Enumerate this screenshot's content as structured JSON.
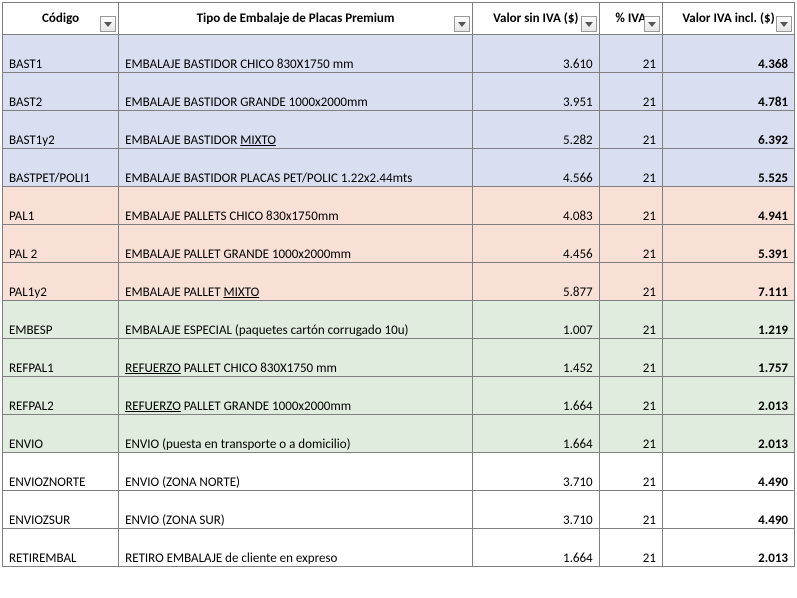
{
  "columns": {
    "codigo": "Código",
    "tipo": "Tipo de Embalaje de Placas Premium",
    "sin": "Valor sin IVA ($)",
    "iva": "% IVA",
    "incl": "Valor IVA incl. ($)"
  },
  "rows": [
    {
      "group": "blue",
      "codigo": "BAST1",
      "tipo_pre": "EMBALAJE BASTIDOR CHICO 830X1750 mm",
      "tipo_u": "",
      "tipo_post": "",
      "sin": "3.610",
      "iva": "21",
      "incl": "4.368"
    },
    {
      "group": "blue",
      "codigo": "BAST2",
      "tipo_pre": "EMBALAJE BASTIDOR GRANDE 1000x2000mm",
      "tipo_u": "",
      "tipo_post": "",
      "sin": "3.951",
      "iva": "21",
      "incl": "4.781"
    },
    {
      "group": "blue",
      "codigo": "BAST1y2",
      "tipo_pre": "EMBALAJE BASTIDOR ",
      "tipo_u": "MIXTO",
      "tipo_post": "",
      "sin": "5.282",
      "iva": "21",
      "incl": "6.392"
    },
    {
      "group": "blue",
      "codigo": "BASTPET/POLI1",
      "tipo_pre": "EMBALAJE BASTIDOR PLACAS PET/POLIC 1.22x2.44mts",
      "tipo_u": "",
      "tipo_post": "",
      "sin": "4.566",
      "iva": "21",
      "incl": "5.525"
    },
    {
      "group": "peach",
      "codigo": "PAL1",
      "tipo_pre": "EMBALAJE PALLETS CHICO 830x1750mm",
      "tipo_u": "",
      "tipo_post": "",
      "sin": "4.083",
      "iva": "21",
      "incl": "4.941"
    },
    {
      "group": "peach",
      "codigo": "PAL 2",
      "tipo_pre": "EMBALAJE PALLET GRANDE 1000x2000mm",
      "tipo_u": "",
      "tipo_post": "",
      "sin": "4.456",
      "iva": "21",
      "incl": "5.391"
    },
    {
      "group": "peach",
      "codigo": "PAL1y2",
      "tipo_pre": "EMBALAJE PALLET ",
      "tipo_u": "MIXTO",
      "tipo_post": "",
      "sin": "5.877",
      "iva": "21",
      "incl": "7.111"
    },
    {
      "group": "green",
      "codigo": "EMBESP",
      "tipo_pre": "EMBALAJE ESPECIAL (paquetes cartón corrugado 10u)",
      "tipo_u": "",
      "tipo_post": "",
      "sin": "1.007",
      "iva": "21",
      "incl": "1.219"
    },
    {
      "group": "green",
      "codigo": "REFPAL1",
      "tipo_pre": "",
      "tipo_u": "REFUERZO",
      "tipo_post": " PALLET CHICO 830X1750 mm",
      "sin": "1.452",
      "iva": "21",
      "incl": "1.757"
    },
    {
      "group": "green",
      "codigo": "REFPAL2",
      "tipo_pre": "",
      "tipo_u": "REFUERZO",
      "tipo_post": " PALLET GRANDE 1000x2000mm",
      "sin": "1.664",
      "iva": "21",
      "incl": "2.013"
    },
    {
      "group": "green",
      "codigo": "ENVIO",
      "tipo_pre": "ENVIO (puesta en transporte o a domicilio)",
      "tipo_u": "",
      "tipo_post": "",
      "sin": "1.664",
      "iva": "21",
      "incl": "2.013"
    },
    {
      "group": "white",
      "codigo": "ENVIOZNORTE",
      "tipo_pre": "ENVIO (ZONA NORTE)",
      "tipo_u": "",
      "tipo_post": "",
      "sin": "3.710",
      "iva": "21",
      "incl": "4.490"
    },
    {
      "group": "white",
      "codigo": "ENVIOZSUR",
      "tipo_pre": "ENVIO (ZONA SUR)",
      "tipo_u": "",
      "tipo_post": "",
      "sin": "3.710",
      "iva": "21",
      "incl": "4.490"
    },
    {
      "group": "white",
      "codigo": "RETIREMBAL",
      "tipo_pre": "RETIRO EMBALAJE de cliente en expreso",
      "tipo_u": "",
      "tipo_post": "",
      "sin": "1.664",
      "iva": "21",
      "incl": "2.013"
    }
  ],
  "colors": {
    "blue": "#d9dff0",
    "peach": "#f8e0d6",
    "green": "#e0ecdd",
    "white": "#ffffff",
    "border": "#808080"
  }
}
